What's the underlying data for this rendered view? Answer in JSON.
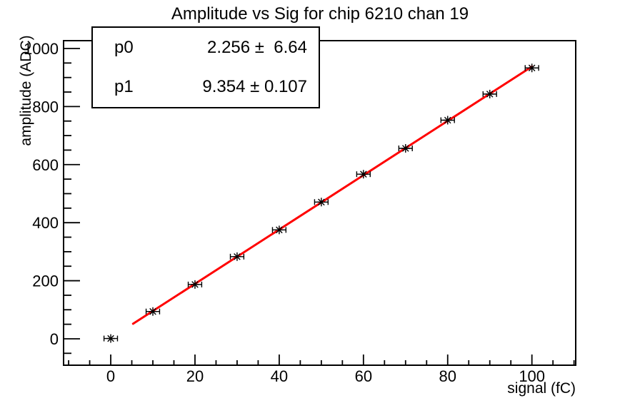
{
  "stats": {
    "rows": [
      {
        "name": "p0",
        "value": "2.256 ±  6.64"
      },
      {
        "name": "p1",
        "value": "9.354 ± 0.107"
      }
    ]
  },
  "chart_data": {
    "type": "scatter",
    "title": "Amplitude vs Sig for chip 6210 chan 19",
    "xlabel": "signal (fC)",
    "ylabel": "amplitude (ADC)",
    "xlim": [
      -11.2,
      110.4
    ],
    "ylim": [
      -91,
      1027
    ],
    "xticks": [
      0,
      20,
      40,
      60,
      80,
      100
    ],
    "yticks": [
      0,
      200,
      400,
      600,
      800,
      1000
    ],
    "x_minor_step": 5,
    "y_minor_step": 50,
    "grid": false,
    "legend": "none",
    "marker": "asterisk",
    "points": {
      "x": [
        0,
        10,
        20,
        30,
        40,
        50,
        60,
        70,
        80,
        90,
        100
      ],
      "y": [
        1,
        94,
        187,
        283,
        375,
        471,
        567,
        656,
        753,
        843,
        933
      ],
      "xerr": 1.6
    },
    "fit": {
      "name": "pol1",
      "p0": 2.256,
      "p1": 9.354,
      "range": [
        5.3,
        100
      ],
      "color": "#ff0000"
    },
    "axis_color": "#000000",
    "background": "#ffffff"
  }
}
